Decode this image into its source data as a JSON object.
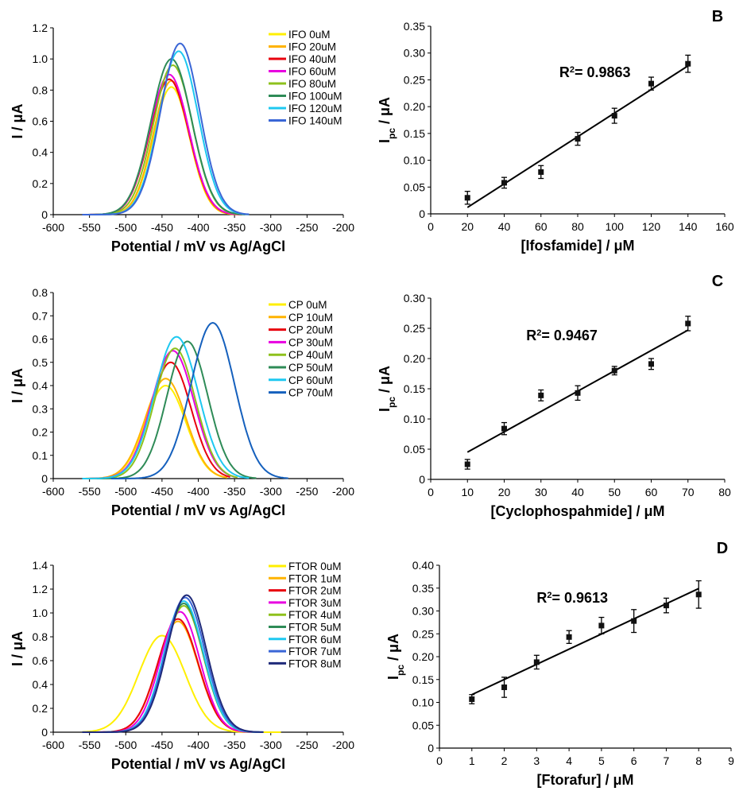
{
  "chart_data": [
    {
      "id": "A",
      "type": "line",
      "panel_label": "",
      "xlabel": "Potential / mV vs Ag/AgCl",
      "ylabel": "I / μA",
      "xlim": [
        -600,
        -200
      ],
      "ylim": [
        0,
        1.2
      ],
      "xticks": [
        -600,
        -550,
        -500,
        -450,
        -400,
        -350,
        -300,
        -250,
        -200
      ],
      "yticks": [
        0,
        0.2,
        0.4,
        0.6,
        0.8,
        1.0,
        1.2
      ],
      "ydec": 1,
      "series": [
        {
          "name": "IFO 0uM",
          "color": "#ffef00",
          "peak_x": -437,
          "peak_y": 0.82,
          "sigma": 25,
          "x_start": -560,
          "x_end": -340
        },
        {
          "name": "IFO 20uM",
          "color": "#ffb300",
          "peak_x": -437,
          "peak_y": 0.86,
          "sigma": 25,
          "x_start": -560,
          "x_end": -340
        },
        {
          "name": "IFO 40uM",
          "color": "#e8000d",
          "peak_x": -440,
          "peak_y": 0.87,
          "sigma": 27,
          "x_start": -560,
          "x_end": -340
        },
        {
          "name": "IFO 60uM",
          "color": "#e800e0",
          "peak_x": -440,
          "peak_y": 0.9,
          "sigma": 27,
          "x_start": -560,
          "x_end": -340
        },
        {
          "name": "IFO 80uM",
          "color": "#8ec11c",
          "peak_x": -435,
          "peak_y": 0.96,
          "sigma": 27,
          "x_start": -560,
          "x_end": -340
        },
        {
          "name": "IFO 100uM",
          "color": "#2e8b57",
          "peak_x": -437,
          "peak_y": 1.0,
          "sigma": 28,
          "x_start": -560,
          "x_end": -335
        },
        {
          "name": "IFO 120uM",
          "color": "#1ec8f0",
          "peak_x": -427,
          "peak_y": 1.05,
          "sigma": 27,
          "x_start": -560,
          "x_end": -330
        },
        {
          "name": "IFO 140uM",
          "color": "#3a66d6",
          "peak_x": -425,
          "peak_y": 1.1,
          "sigma": 27,
          "x_start": -560,
          "x_end": -330
        }
      ]
    },
    {
      "id": "B",
      "type": "scatter",
      "panel_label": "B",
      "xlabel": "[Ifosfamide] / μM",
      "ylabel_main": "I",
      "ylabel_sub": "pc",
      "ylabel_tail": " / μA",
      "xlim": [
        0,
        160
      ],
      "ylim": [
        0,
        0.35
      ],
      "xticks": [
        0,
        20,
        40,
        60,
        80,
        100,
        120,
        140,
        160
      ],
      "yticks": [
        0,
        0.05,
        0.1,
        0.15,
        0.2,
        0.25,
        0.3,
        0.35
      ],
      "ydec": 2,
      "x": [
        20,
        40,
        60,
        80,
        100,
        120,
        140
      ],
      "y": [
        0.03,
        0.058,
        0.078,
        0.14,
        0.183,
        0.243,
        0.28
      ],
      "err": [
        0.012,
        0.01,
        0.012,
        0.012,
        0.014,
        0.012,
        0.016
      ],
      "fit_x": [
        20,
        140
      ],
      "fit_y": [
        0.012,
        0.276
      ],
      "r2_text": "= 0.9863",
      "r2_x": 70,
      "r2_y": 0.255
    },
    {
      "id": "C-curves",
      "type": "line",
      "panel_label": "",
      "xlabel": "Potential / mV vs Ag/AgCl",
      "ylabel": "I / μA",
      "xlim": [
        -600,
        -200
      ],
      "ylim": [
        0,
        0.8
      ],
      "xticks": [
        -600,
        -550,
        -500,
        -450,
        -400,
        -350,
        -300,
        -250,
        -200
      ],
      "yticks": [
        0,
        0.1,
        0.2,
        0.3,
        0.4,
        0.5,
        0.6,
        0.7,
        0.8
      ],
      "ydec": 1,
      "series": [
        {
          "name": "CP 0uM",
          "color": "#ffef00",
          "peak_x": -445,
          "peak_y": 0.4,
          "sigma": 28,
          "x_start": -560,
          "x_end": -360
        },
        {
          "name": "CP 10uM",
          "color": "#ffb300",
          "peak_x": -445,
          "peak_y": 0.43,
          "sigma": 28,
          "x_start": -560,
          "x_end": -360
        },
        {
          "name": "CP 20uM",
          "color": "#e8000d",
          "peak_x": -438,
          "peak_y": 0.5,
          "sigma": 28,
          "x_start": -560,
          "x_end": -355
        },
        {
          "name": "CP 30uM",
          "color": "#e800e0",
          "peak_x": -435,
          "peak_y": 0.55,
          "sigma": 29,
          "x_start": -560,
          "x_end": -350
        },
        {
          "name": "CP 40uM",
          "color": "#8ec11c",
          "peak_x": -432,
          "peak_y": 0.56,
          "sigma": 28,
          "x_start": -560,
          "x_end": -345
        },
        {
          "name": "CP 50uM",
          "color": "#2e8b57",
          "peak_x": -415,
          "peak_y": 0.59,
          "sigma": 28,
          "x_start": -540,
          "x_end": -320
        },
        {
          "name": "CP 60uM",
          "color": "#1ec8f0",
          "peak_x": -430,
          "peak_y": 0.61,
          "sigma": 30,
          "x_start": -560,
          "x_end": -330
        },
        {
          "name": "CP 70uM",
          "color": "#1560bd",
          "peak_x": -380,
          "peak_y": 0.67,
          "sigma": 30,
          "x_start": -520,
          "x_end": -275
        }
      ]
    },
    {
      "id": "C",
      "type": "scatter",
      "panel_label": "C",
      "xlabel": "[Cyclophospahmide] / μM",
      "ylabel_main": "I",
      "ylabel_sub": "pc",
      "ylabel_tail": " / μA",
      "xlim": [
        0,
        80
      ],
      "ylim": [
        0,
        0.3
      ],
      "xticks": [
        0,
        10,
        20,
        30,
        40,
        50,
        60,
        70,
        80
      ],
      "yticks": [
        0,
        0.05,
        0.1,
        0.15,
        0.2,
        0.25,
        0.3
      ],
      "ydec": 2,
      "x": [
        10,
        20,
        30,
        40,
        50,
        60,
        70
      ],
      "y": [
        0.025,
        0.084,
        0.139,
        0.143,
        0.18,
        0.191,
        0.258
      ],
      "err": [
        0.008,
        0.01,
        0.009,
        0.012,
        0.007,
        0.009,
        0.012
      ],
      "fit_x": [
        10,
        70
      ],
      "fit_y": [
        0.045,
        0.247
      ],
      "r2_text": "= 0.9467",
      "r2_x": 26,
      "r2_y": 0.23
    },
    {
      "id": "D-curves",
      "type": "line",
      "panel_label": "",
      "xlabel": "Potential / mV vs Ag/AgCl",
      "ylabel": "I / μA",
      "xlim": [
        -600,
        -200
      ],
      "ylim": [
        0,
        1.4
      ],
      "xticks": [
        -600,
        -550,
        -500,
        -450,
        -400,
        -350,
        -300,
        -250,
        -200
      ],
      "yticks": [
        0,
        0.2,
        0.4,
        0.6,
        0.8,
        1.0,
        1.2,
        1.4
      ],
      "ydec": 1,
      "series": [
        {
          "name": "FTOR 0uM",
          "color": "#ffef00",
          "peak_x": -450,
          "peak_y": 0.81,
          "sigma": 32,
          "x_start": -560,
          "x_end": -285
        },
        {
          "name": "FTOR 1uM",
          "color": "#ffb300",
          "peak_x": -428,
          "peak_y": 0.93,
          "sigma": 28,
          "x_start": -560,
          "x_end": -320
        },
        {
          "name": "FTOR 2uM",
          "color": "#e8000d",
          "peak_x": -428,
          "peak_y": 0.95,
          "sigma": 28,
          "x_start": -560,
          "x_end": -320
        },
        {
          "name": "FTOR 3uM",
          "color": "#e800e0",
          "peak_x": -425,
          "peak_y": 1.01,
          "sigma": 27,
          "x_start": -560,
          "x_end": -318
        },
        {
          "name": "FTOR 4uM",
          "color": "#8ec11c",
          "peak_x": -420,
          "peak_y": 1.06,
          "sigma": 27,
          "x_start": -560,
          "x_end": -315
        },
        {
          "name": "FTOR 5uM",
          "color": "#2e8b57",
          "peak_x": -420,
          "peak_y": 1.08,
          "sigma": 27,
          "x_start": -560,
          "x_end": -315
        },
        {
          "name": "FTOR 6uM",
          "color": "#1ec8f0",
          "peak_x": -420,
          "peak_y": 1.1,
          "sigma": 27,
          "x_start": -560,
          "x_end": -312
        },
        {
          "name": "FTOR 7uM",
          "color": "#3a66d6",
          "peak_x": -418,
          "peak_y": 1.13,
          "sigma": 27,
          "x_start": -560,
          "x_end": -310
        },
        {
          "name": "FTOR 8uM",
          "color": "#1f2a7a",
          "peak_x": -416,
          "peak_y": 1.15,
          "sigma": 27,
          "x_start": -560,
          "x_end": -310
        }
      ]
    },
    {
      "id": "D",
      "type": "scatter",
      "panel_label": "D",
      "xlabel": "[Ftorafur] / μM",
      "ylabel_main": "I",
      "ylabel_sub": "pc",
      "ylabel_tail": " / μA",
      "xlim": [
        0,
        9
      ],
      "ylim": [
        0,
        0.4
      ],
      "xticks": [
        0,
        1,
        2,
        3,
        4,
        5,
        6,
        7,
        8,
        9
      ],
      "yticks": [
        0,
        0.05,
        0.1,
        0.15,
        0.2,
        0.25,
        0.3,
        0.35,
        0.4
      ],
      "ydec": 2,
      "x": [
        1,
        2,
        3,
        4,
        5,
        6,
        7,
        8
      ],
      "y": [
        0.107,
        0.133,
        0.188,
        0.243,
        0.268,
        0.278,
        0.312,
        0.336
      ],
      "err": [
        0.01,
        0.022,
        0.015,
        0.014,
        0.018,
        0.025,
        0.016,
        0.03
      ],
      "fit_x": [
        1,
        8
      ],
      "fit_y": [
        0.117,
        0.349
      ],
      "r2_text": "= 0.9613",
      "r2_x": 3,
      "r2_y": 0.318
    }
  ]
}
